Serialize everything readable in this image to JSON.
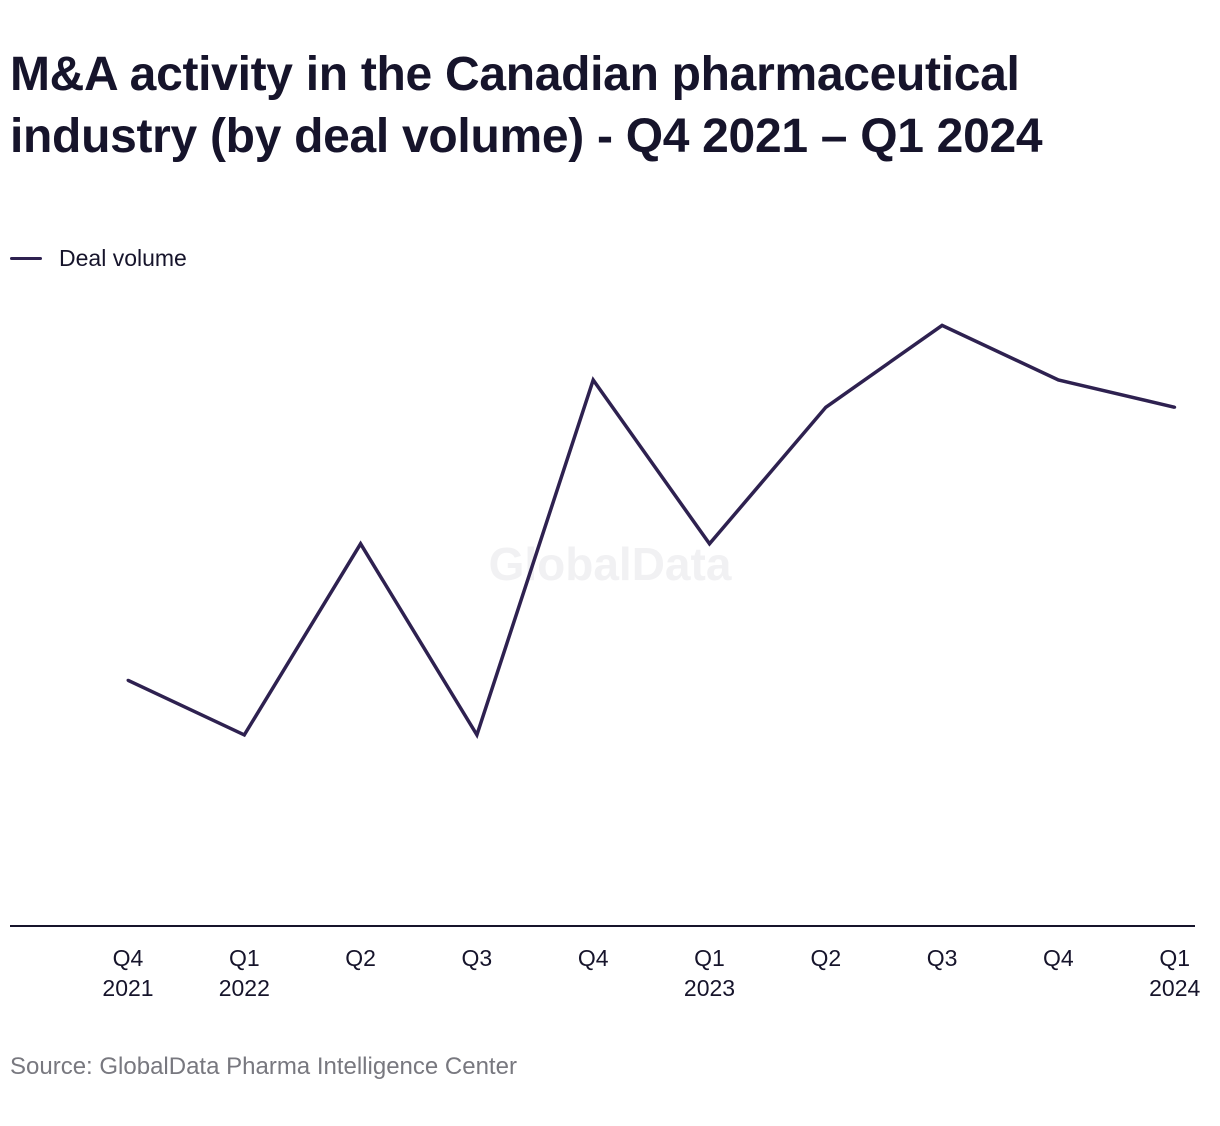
{
  "chart_data": {
    "type": "line",
    "title": "M&A activity in the Canadian pharmaceutical industry (by deal volume) - Q4 2021 – Q1 2024",
    "categories": [
      [
        "Q4",
        "2021"
      ],
      [
        "Q1",
        "2022"
      ],
      [
        "Q2",
        ""
      ],
      [
        "Q3",
        ""
      ],
      [
        "Q4",
        ""
      ],
      [
        "Q1",
        "2023"
      ],
      [
        "Q2",
        ""
      ],
      [
        "Q3",
        ""
      ],
      [
        "Q4",
        ""
      ],
      [
        "Q1",
        "2024"
      ]
    ],
    "series": [
      {
        "name": "Deal volume",
        "values": [
          9,
          7,
          14,
          7,
          20,
          14,
          19,
          22,
          20,
          19
        ]
      }
    ],
    "ylim": [
      0,
      30
    ],
    "grid": false,
    "legend_position": "top-left",
    "line_color": "#2e2150",
    "axis_color": "#16142b"
  },
  "watermark": "GlobalData",
  "source": "Source: GlobalData Pharma Intelligence Center"
}
